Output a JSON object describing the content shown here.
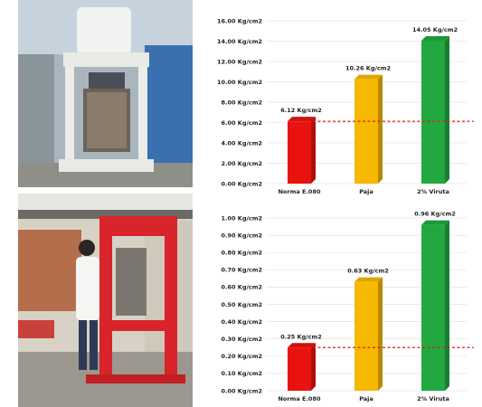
{
  "icons": {
    "photo_top": "compression-test-machine-photo",
    "photo_bottom": "hydraulic-press-with-technician-photo"
  },
  "chart_data": [
    {
      "type": "bar",
      "title": "",
      "xlabel": "",
      "ylabel": "",
      "categories": [
        "Norma E.080",
        "Paja",
        "2% Viruta"
      ],
      "values": [
        6.12,
        10.26,
        14.05
      ],
      "data_labels": [
        "6.12 Kg/cm2",
        "10.26 Kg/cm2",
        "14.05 Kg/cm2"
      ],
      "ylim": [
        0,
        16
      ],
      "yticks": [
        0,
        2,
        4,
        6,
        8,
        10,
        12,
        14,
        16
      ],
      "ytick_labels": [
        "0.00 Kg/cm2",
        "2.00 Kg/cm2",
        "4.00 Kg/cm2",
        "6.00 Kg/cm2",
        "8.00 Kg/cm2",
        "10.00 Kg/cm2",
        "12.00 Kg/cm2",
        "14.00 Kg/cm2",
        "16.00 Kg/cm2"
      ],
      "reference_line": 6.12,
      "colors": [
        "#e8130f",
        "#f6b800",
        "#21a83f"
      ],
      "reference_color": "#d7201f",
      "grid": true,
      "legend": "none"
    },
    {
      "type": "bar",
      "title": "",
      "xlabel": "",
      "ylabel": "",
      "categories": [
        "Norma E.080",
        "Paja",
        "2% Viruta"
      ],
      "values": [
        0.25,
        0.63,
        0.96
      ],
      "data_labels": [
        "0.25 Kg/cm2",
        "0.63 Kg/cm2",
        "0.96 Kg/cm2"
      ],
      "ylim": [
        0,
        1
      ],
      "yticks": [
        0,
        0.1,
        0.2,
        0.3,
        0.4,
        0.5,
        0.6,
        0.7,
        0.8,
        0.9,
        1.0
      ],
      "ytick_labels": [
        "0.00 Kg/cm2",
        "0.10 Kg/cm2",
        "0.20 Kg/cm2",
        "0.30 Kg/cm2",
        "0.40 Kg/cm2",
        "0.50 Kg/cm2",
        "0.60 Kg/cm2",
        "0.70 Kg/cm2",
        "0.80 Kg/cm2",
        "0.90 Kg/cm2",
        "1.00 Kg/cm2"
      ],
      "reference_line": 0.25,
      "colors": [
        "#e8130f",
        "#f6b800",
        "#21a83f"
      ],
      "reference_color": "#d7201f",
      "grid": true,
      "legend": "none"
    }
  ]
}
